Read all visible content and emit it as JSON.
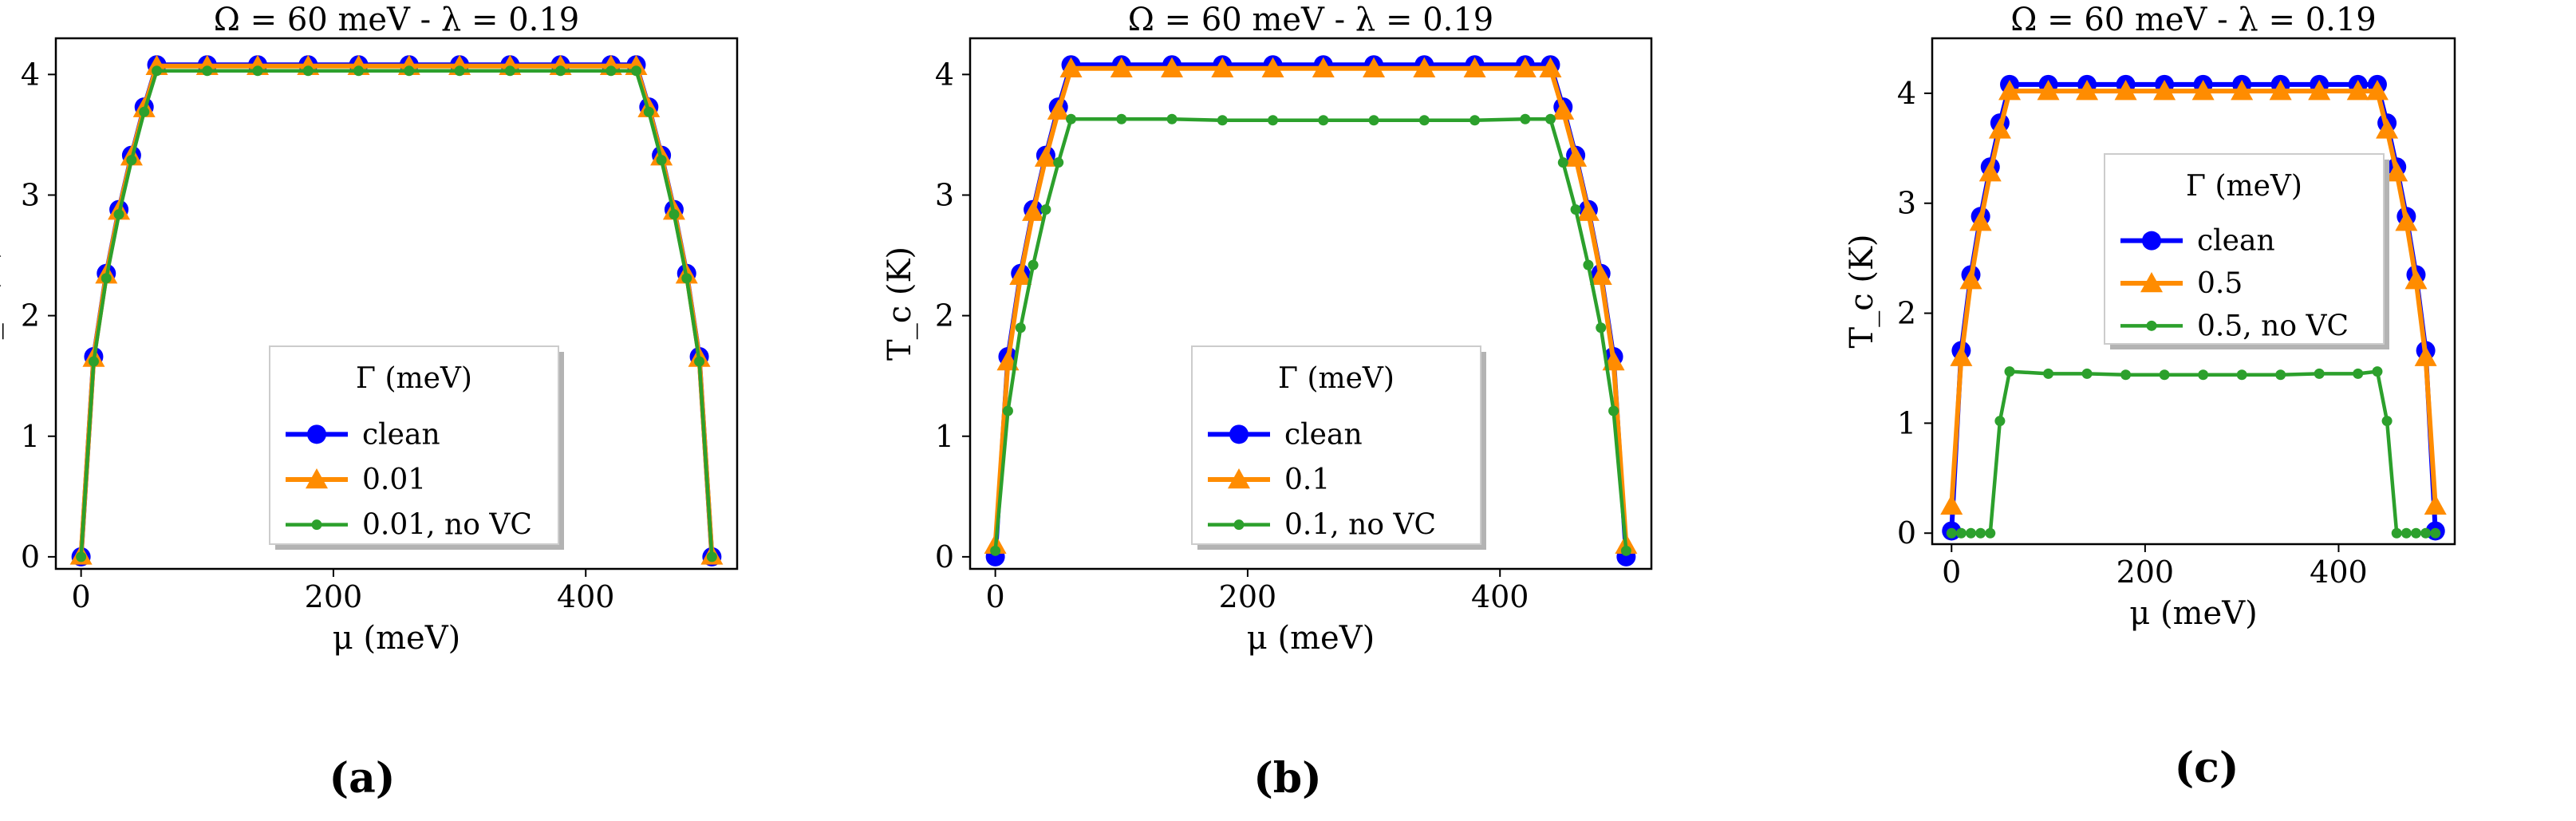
{
  "chart_data": [
    {
      "type": "line",
      "panel_label": "(a)",
      "title": "Ω = 60 meV - λ = 0.19",
      "xlabel": "μ (meV)",
      "ylabel": "T_c (K)",
      "xlim": [
        -20,
        520
      ],
      "ylim": [
        -0.1,
        4.3
      ],
      "xticks": [
        0,
        200,
        400
      ],
      "yticks": [
        0,
        1,
        2,
        3,
        4
      ],
      "legend_title": "Γ (meV)",
      "legend_position": "lower-center",
      "series": [
        {
          "name": "clean",
          "color": "#0000ff",
          "marker": "circle",
          "x": [
            0,
            10,
            20,
            30,
            40,
            50,
            60,
            100,
            140,
            180,
            220,
            260,
            300,
            340,
            380,
            420,
            440,
            450,
            460,
            470,
            480,
            490,
            500
          ],
          "y": [
            0,
            1.66,
            2.35,
            2.88,
            3.33,
            3.73,
            4.08,
            4.08,
            4.08,
            4.08,
            4.08,
            4.08,
            4.08,
            4.08,
            4.08,
            4.08,
            4.08,
            3.73,
            3.33,
            2.88,
            2.35,
            1.66,
            0
          ]
        },
        {
          "name": "0.01",
          "color": "#ff8c00",
          "marker": "triangle",
          "x": [
            0,
            10,
            20,
            30,
            40,
            50,
            60,
            100,
            140,
            180,
            220,
            260,
            300,
            340,
            380,
            420,
            440,
            450,
            460,
            470,
            480,
            490,
            500
          ],
          "y": [
            0.01,
            1.65,
            2.34,
            2.87,
            3.32,
            3.72,
            4.07,
            4.07,
            4.07,
            4.07,
            4.07,
            4.07,
            4.07,
            4.07,
            4.07,
            4.07,
            4.07,
            3.72,
            3.32,
            2.87,
            2.34,
            1.65,
            0.01
          ]
        },
        {
          "name": "0.01, no VC",
          "color": "#2ca02c",
          "marker": "dot",
          "x": [
            0,
            10,
            20,
            30,
            40,
            50,
            60,
            100,
            140,
            180,
            220,
            260,
            300,
            340,
            380,
            420,
            440,
            450,
            460,
            470,
            480,
            490,
            500
          ],
          "y": [
            0,
            1.62,
            2.31,
            2.84,
            3.29,
            3.69,
            4.03,
            4.03,
            4.03,
            4.03,
            4.03,
            4.03,
            4.03,
            4.03,
            4.03,
            4.03,
            4.03,
            3.69,
            3.29,
            2.84,
            2.31,
            1.62,
            0
          ]
        }
      ]
    },
    {
      "type": "line",
      "panel_label": "(b)",
      "title": "Ω = 60 meV - λ = 0.19",
      "xlabel": "μ (meV)",
      "ylabel": "T_c (K)",
      "xlim": [
        -20,
        520
      ],
      "ylim": [
        -0.1,
        4.3
      ],
      "xticks": [
        0,
        200,
        400
      ],
      "yticks": [
        0,
        1,
        2,
        3,
        4
      ],
      "legend_title": "Γ (meV)",
      "legend_position": "lower-center",
      "series": [
        {
          "name": "clean",
          "color": "#0000ff",
          "marker": "circle",
          "x": [
            0,
            10,
            20,
            30,
            40,
            50,
            60,
            100,
            140,
            180,
            220,
            260,
            300,
            340,
            380,
            420,
            440,
            450,
            460,
            470,
            480,
            490,
            500
          ],
          "y": [
            0,
            1.66,
            2.35,
            2.88,
            3.33,
            3.73,
            4.08,
            4.08,
            4.08,
            4.08,
            4.08,
            4.08,
            4.08,
            4.08,
            4.08,
            4.08,
            4.08,
            3.73,
            3.33,
            2.88,
            2.35,
            1.66,
            0
          ]
        },
        {
          "name": "0.1",
          "color": "#ff8c00",
          "marker": "triangle",
          "x": [
            0,
            10,
            20,
            30,
            40,
            50,
            60,
            100,
            140,
            180,
            220,
            260,
            300,
            340,
            380,
            420,
            440,
            450,
            460,
            470,
            480,
            490,
            500
          ],
          "y": [
            0.1,
            1.62,
            2.33,
            2.86,
            3.31,
            3.7,
            4.05,
            4.05,
            4.05,
            4.05,
            4.05,
            4.05,
            4.05,
            4.05,
            4.05,
            4.05,
            4.05,
            3.7,
            3.31,
            2.86,
            2.33,
            1.62,
            0.1
          ]
        },
        {
          "name": "0.1, no VC",
          "color": "#2ca02c",
          "marker": "dot",
          "x": [
            0,
            10,
            20,
            30,
            40,
            50,
            60,
            100,
            140,
            180,
            220,
            260,
            300,
            340,
            380,
            420,
            440,
            450,
            460,
            470,
            480,
            490,
            500
          ],
          "y": [
            0.05,
            1.21,
            1.9,
            2.42,
            2.88,
            3.27,
            3.63,
            3.63,
            3.63,
            3.62,
            3.62,
            3.62,
            3.62,
            3.62,
            3.62,
            3.63,
            3.63,
            3.27,
            2.88,
            2.42,
            1.9,
            1.21,
            0.05
          ]
        }
      ]
    },
    {
      "type": "line",
      "panel_label": "(c)",
      "title": "Ω = 60 meV - λ = 0.19",
      "xlabel": "μ (meV)",
      "ylabel": "T_c (K)",
      "xlim": [
        -20,
        520
      ],
      "ylim": [
        -0.1,
        4.5
      ],
      "xticks": [
        0,
        200,
        400
      ],
      "yticks": [
        0,
        1,
        2,
        3,
        4
      ],
      "legend_title": "Γ (meV)",
      "legend_position": "center",
      "series": [
        {
          "name": "clean",
          "color": "#0000ff",
          "marker": "circle",
          "x": [
            0,
            10,
            20,
            30,
            40,
            50,
            60,
            100,
            140,
            180,
            220,
            260,
            300,
            340,
            380,
            420,
            440,
            450,
            460,
            470,
            480,
            490,
            500
          ],
          "y": [
            0.02,
            1.66,
            2.35,
            2.88,
            3.33,
            3.73,
            4.08,
            4.08,
            4.08,
            4.08,
            4.08,
            4.08,
            4.08,
            4.08,
            4.08,
            4.08,
            4.08,
            3.73,
            3.33,
            2.88,
            2.35,
            1.66,
            0.02
          ]
        },
        {
          "name": "0.5",
          "color": "#ff8c00",
          "marker": "triangle",
          "x": [
            0,
            10,
            20,
            30,
            40,
            50,
            60,
            100,
            140,
            180,
            220,
            260,
            300,
            340,
            380,
            420,
            440,
            450,
            460,
            470,
            480,
            490,
            500
          ],
          "y": [
            0.25,
            1.6,
            2.3,
            2.83,
            3.28,
            3.67,
            4.02,
            4.02,
            4.02,
            4.02,
            4.02,
            4.02,
            4.02,
            4.02,
            4.02,
            4.02,
            4.02,
            3.67,
            3.28,
            2.83,
            2.3,
            1.6,
            0.25
          ]
        },
        {
          "name": "0.5, no VC",
          "color": "#2ca02c",
          "marker": "dot",
          "x": [
            0,
            10,
            20,
            30,
            40,
            50,
            60,
            100,
            140,
            180,
            220,
            260,
            300,
            340,
            380,
            420,
            440,
            450,
            460,
            470,
            480,
            490,
            500
          ],
          "y": [
            0,
            0,
            0,
            0,
            0,
            1.02,
            1.47,
            1.45,
            1.45,
            1.44,
            1.44,
            1.44,
            1.44,
            1.44,
            1.45,
            1.45,
            1.47,
            1.02,
            0,
            0,
            0,
            0,
            0
          ]
        }
      ]
    }
  ]
}
